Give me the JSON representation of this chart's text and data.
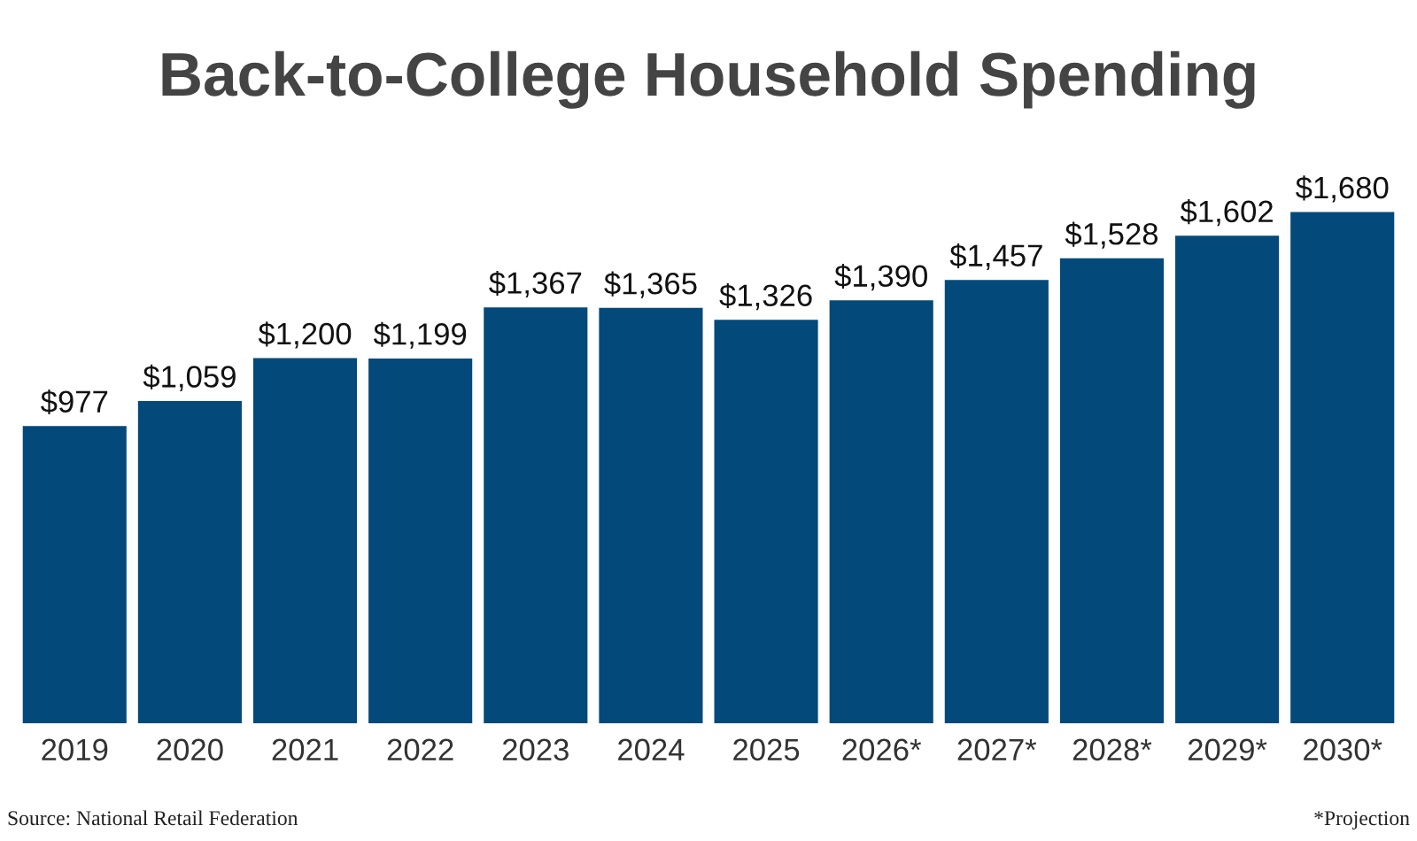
{
  "chart_data": {
    "type": "bar",
    "title": "Back-to-College Household Spending",
    "categories": [
      "2019",
      "2020",
      "2021",
      "2022",
      "2023",
      "2024",
      "2025",
      "2026*",
      "2027*",
      "2028*",
      "2029*",
      "2030*"
    ],
    "values": [
      977,
      1059,
      1200,
      1199,
      1367,
      1365,
      1326,
      1390,
      1457,
      1528,
      1602,
      1680
    ],
    "value_labels": [
      "$977",
      "$1,059",
      "$1,200",
      "$1,199",
      "$1,367",
      "$1,365",
      "$1,326",
      "$1,390",
      "$1,457",
      "$1,528",
      "$1,602",
      "$1,680"
    ],
    "color": "#03497a",
    "annotations": [
      "Source: National Retail Federation",
      "*Projection"
    ],
    "grid": false,
    "legend": false
  }
}
